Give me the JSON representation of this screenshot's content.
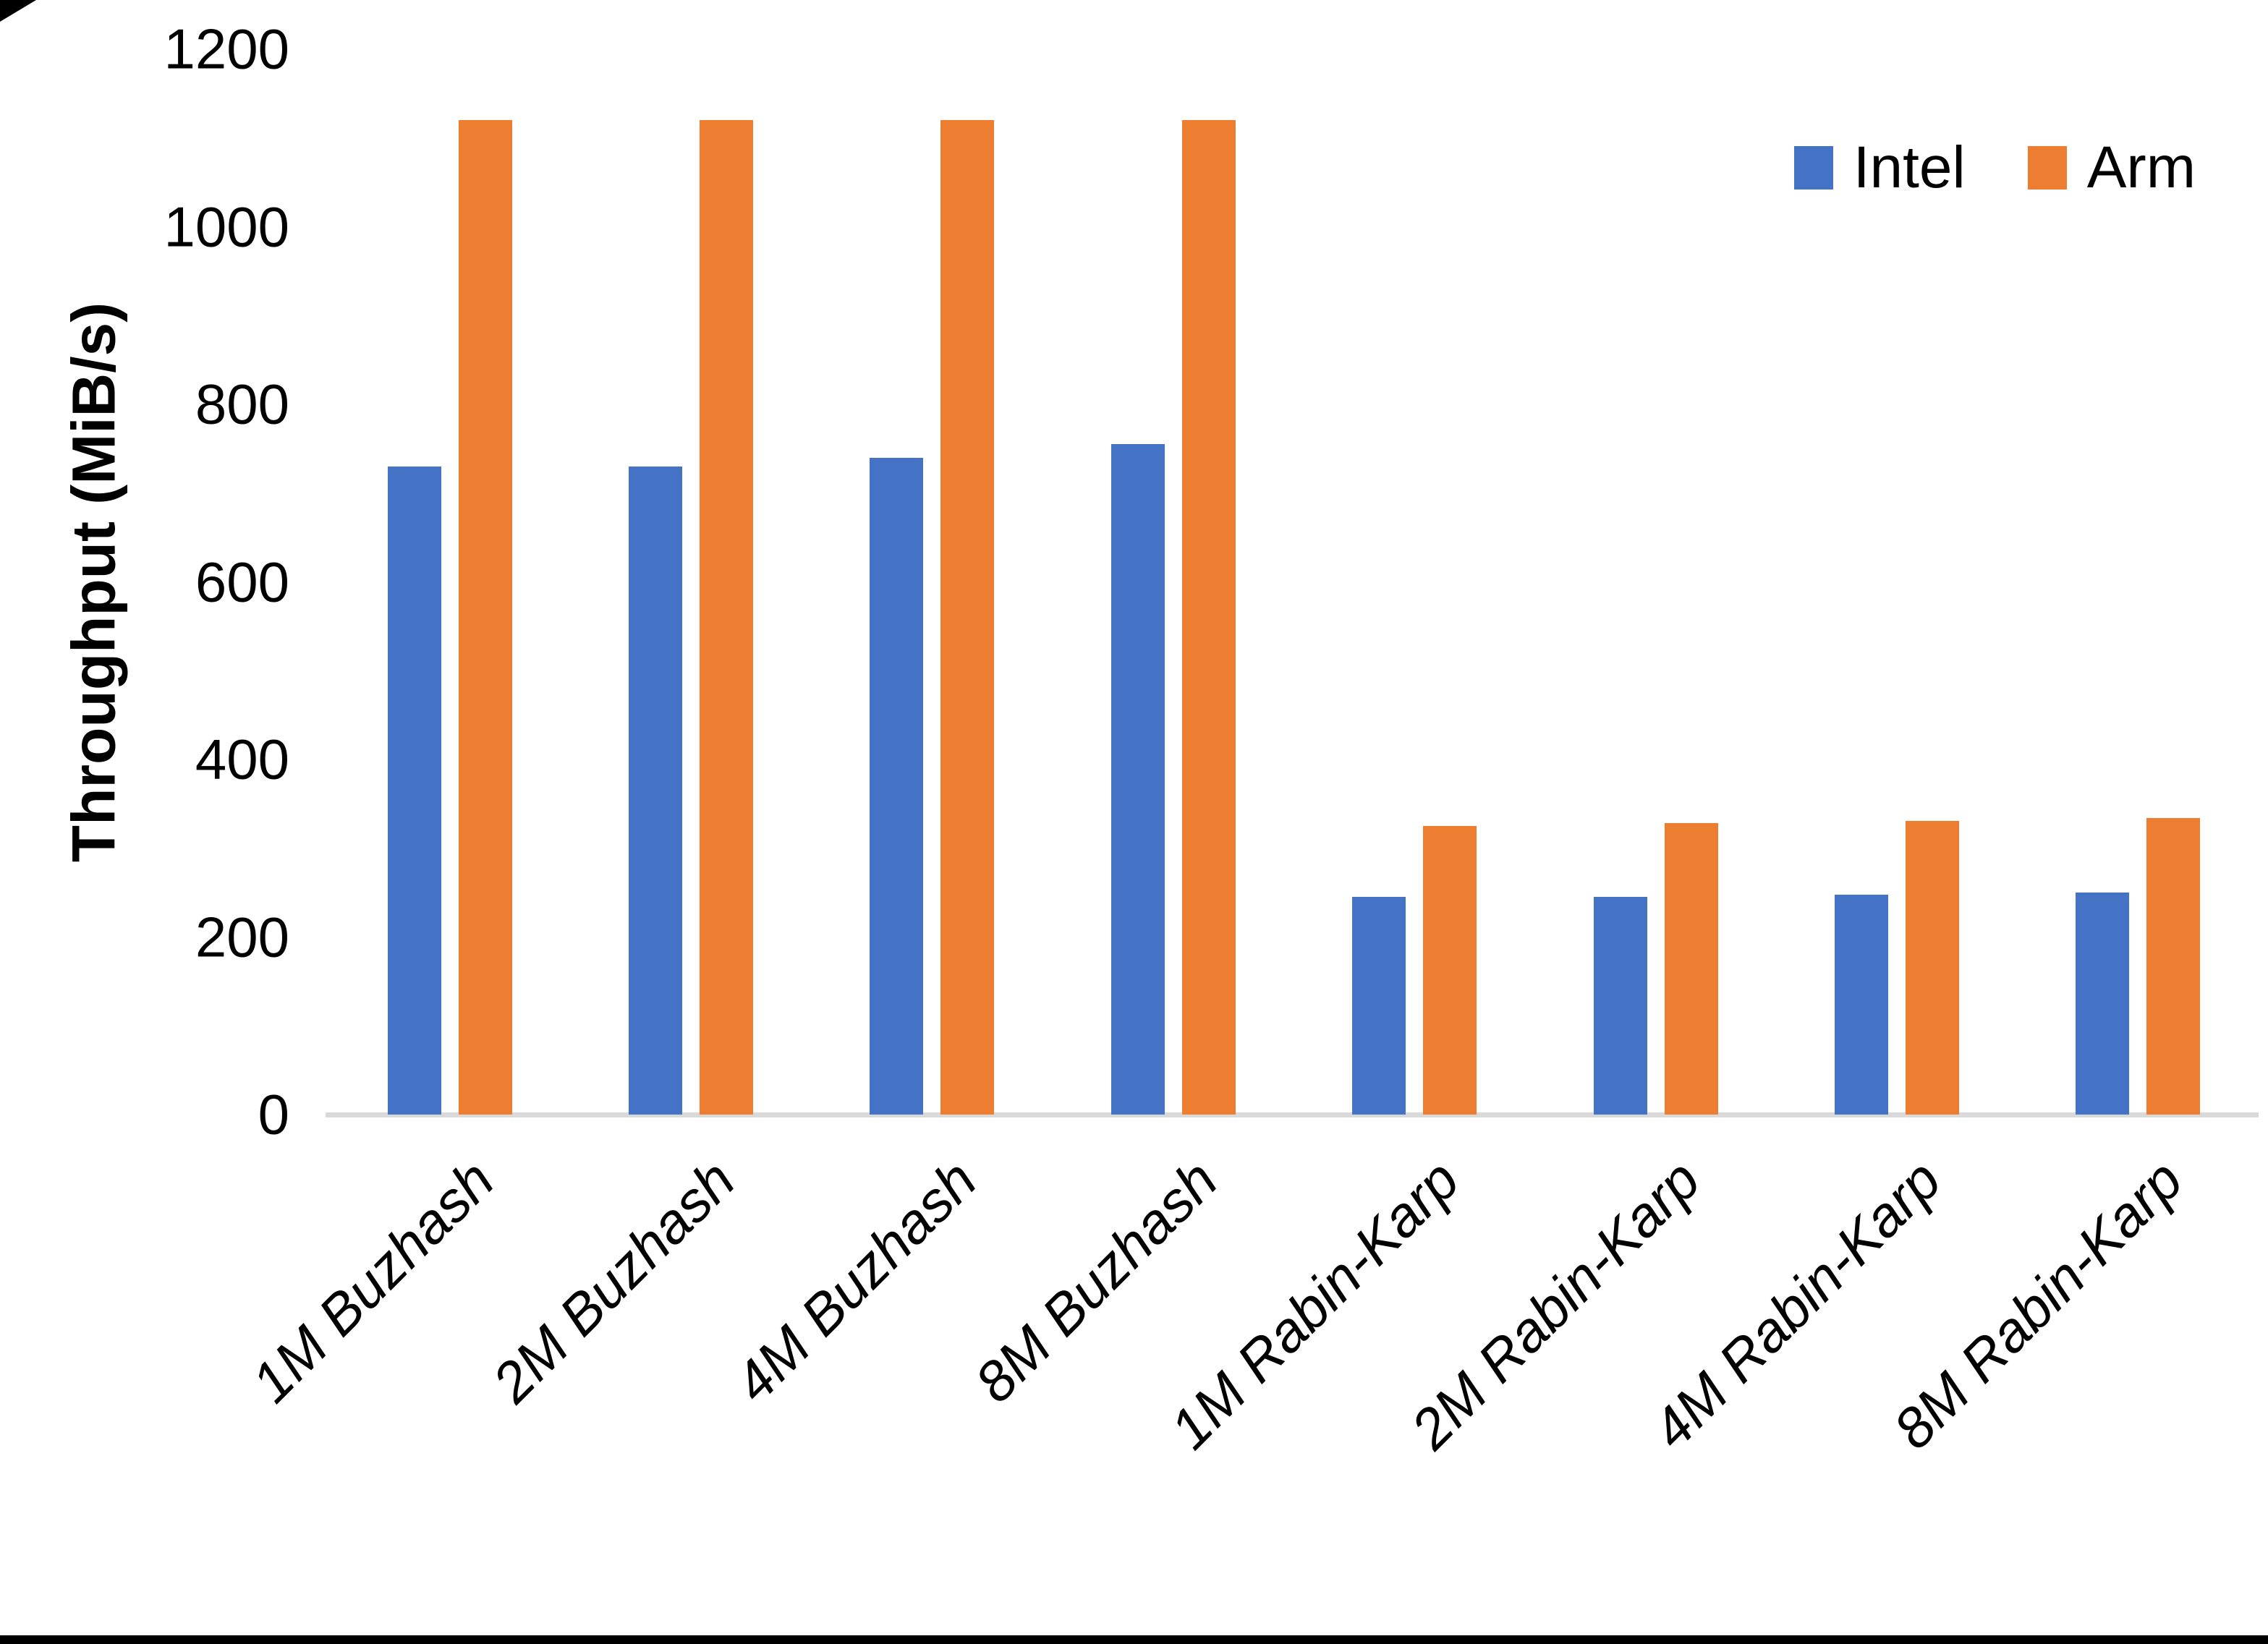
{
  "chart_data": {
    "type": "bar",
    "title": "",
    "xlabel": "",
    "ylabel": "Throughput (MiB/s)",
    "ylim": [
      0,
      1200
    ],
    "yticks": [
      0,
      200,
      400,
      600,
      800,
      1000,
      1200
    ],
    "grid": false,
    "legend_position": "top-right",
    "x_label_rotation_deg": 45,
    "axis_line_color": "#D9D9D9",
    "background_color": "#FFFFFF",
    "categories": [
      "1M Buzhash",
      "2M Buzhash",
      "4M Buzhash",
      "8M Buzhash",
      "1M Rabin-Karp",
      "2M Rabin-Karp",
      "4M Rabin-Karp",
      "8M Rabin-Karp"
    ],
    "series": [
      {
        "name": "Intel",
        "color": "#4472C4",
        "values": [
          730,
          730,
          740,
          755,
          245,
          245,
          248,
          250
        ]
      },
      {
        "name": "Arm",
        "color": "#ED7D31",
        "values": [
          1120,
          1120,
          1120,
          1120,
          325,
          328,
          331,
          334
        ]
      }
    ]
  }
}
